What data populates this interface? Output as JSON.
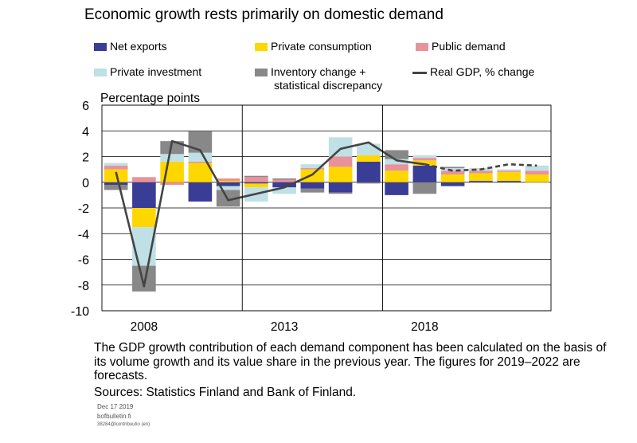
{
  "colors": {
    "net_exports": "#3a3d96",
    "private_consumption": "#ffd700",
    "public_demand": "#e8929a",
    "private_investment": "#bfe0e4",
    "inventory": "#888888",
    "gdp_line": "#444444"
  },
  "chart_data": {
    "type": "bar",
    "stacked": true,
    "title": "Economic growth rests primarily on domestic demand",
    "ylabel": "Percentage points",
    "ylim": [
      -10,
      6
    ],
    "yticks": [
      -10,
      -8,
      -6,
      -4,
      -2,
      0,
      2,
      4,
      6
    ],
    "categories": [
      "2007",
      "2008",
      "2009",
      "2010",
      "2011",
      "2012",
      "2013",
      "2014",
      "2015",
      "2016",
      "2017",
      "2018",
      "2019",
      "2020",
      "2021",
      "2022"
    ],
    "xtick_labels": [
      {
        "category": "2008",
        "label": "2008"
      },
      {
        "category": "2013",
        "label": "2013"
      },
      {
        "category": "2018",
        "label": "2018"
      }
    ],
    "vertical_dividers_after": [
      "2011",
      "2016"
    ],
    "forecast_from": "2019",
    "series": [
      {
        "key": "net_exports",
        "name": "Net exports",
        "values": [
          -0.2,
          -2.0,
          0.0,
          -1.5,
          -0.3,
          -0.1,
          -0.4,
          -0.5,
          -0.8,
          1.6,
          -1.0,
          1.3,
          -0.3,
          0.1,
          0.1,
          0.0
        ]
      },
      {
        "key": "private_consumption",
        "name": "Private consumption",
        "values": [
          1.0,
          -1.5,
          1.6,
          1.5,
          0.1,
          -0.3,
          0.0,
          1.0,
          1.2,
          0.5,
          0.9,
          0.4,
          0.6,
          0.6,
          0.7,
          0.6
        ]
      },
      {
        "key": "public_demand",
        "name": "Public demand",
        "values": [
          0.3,
          0.4,
          -0.2,
          0.1,
          0.2,
          0.4,
          0.2,
          0.1,
          0.8,
          0.0,
          0.5,
          0.2,
          0.3,
          0.2,
          0.1,
          0.3
        ]
      },
      {
        "key": "private_investment",
        "name": "Private investment",
        "values": [
          0.2,
          -3.0,
          0.6,
          0.7,
          -0.3,
          -1.1,
          -0.5,
          0.3,
          1.5,
          0.9,
          0.4,
          0.2,
          0.2,
          0.2,
          0.1,
          0.4
        ]
      },
      {
        "key": "inventory",
        "name": "Inventory change + statistical discrepancy",
        "values": [
          -0.4,
          -2.0,
          1.0,
          1.7,
          -1.3,
          0.1,
          0.1,
          -0.3,
          -0.1,
          -0.1,
          0.7,
          -0.9,
          0.1,
          0.0,
          0.0,
          0.0
        ]
      }
    ],
    "line": {
      "key": "gdp_line",
      "name": "Real GDP, % change",
      "values": [
        0.8,
        -8.1,
        3.2,
        2.5,
        -1.4,
        -0.9,
        -0.4,
        0.6,
        2.6,
        3.1,
        1.7,
        1.4,
        0.9,
        1.0,
        1.4,
        1.3
      ]
    }
  },
  "legend": {
    "line1": [
      "Inventory change +",
      "statistical discrepancy"
    ]
  },
  "note": "The GDP growth contribution of each demand component has been calculated on the basis of its volume growth and its value share in the previous year. The figures for 2019–2022 are forecasts.",
  "source": "Sources: Statistics Finland and Bank of Finland.",
  "footer": {
    "date": "Dec 17 2019",
    "site": "bofbulletin.fi",
    "code": "38284@kontribuutio (en)"
  }
}
